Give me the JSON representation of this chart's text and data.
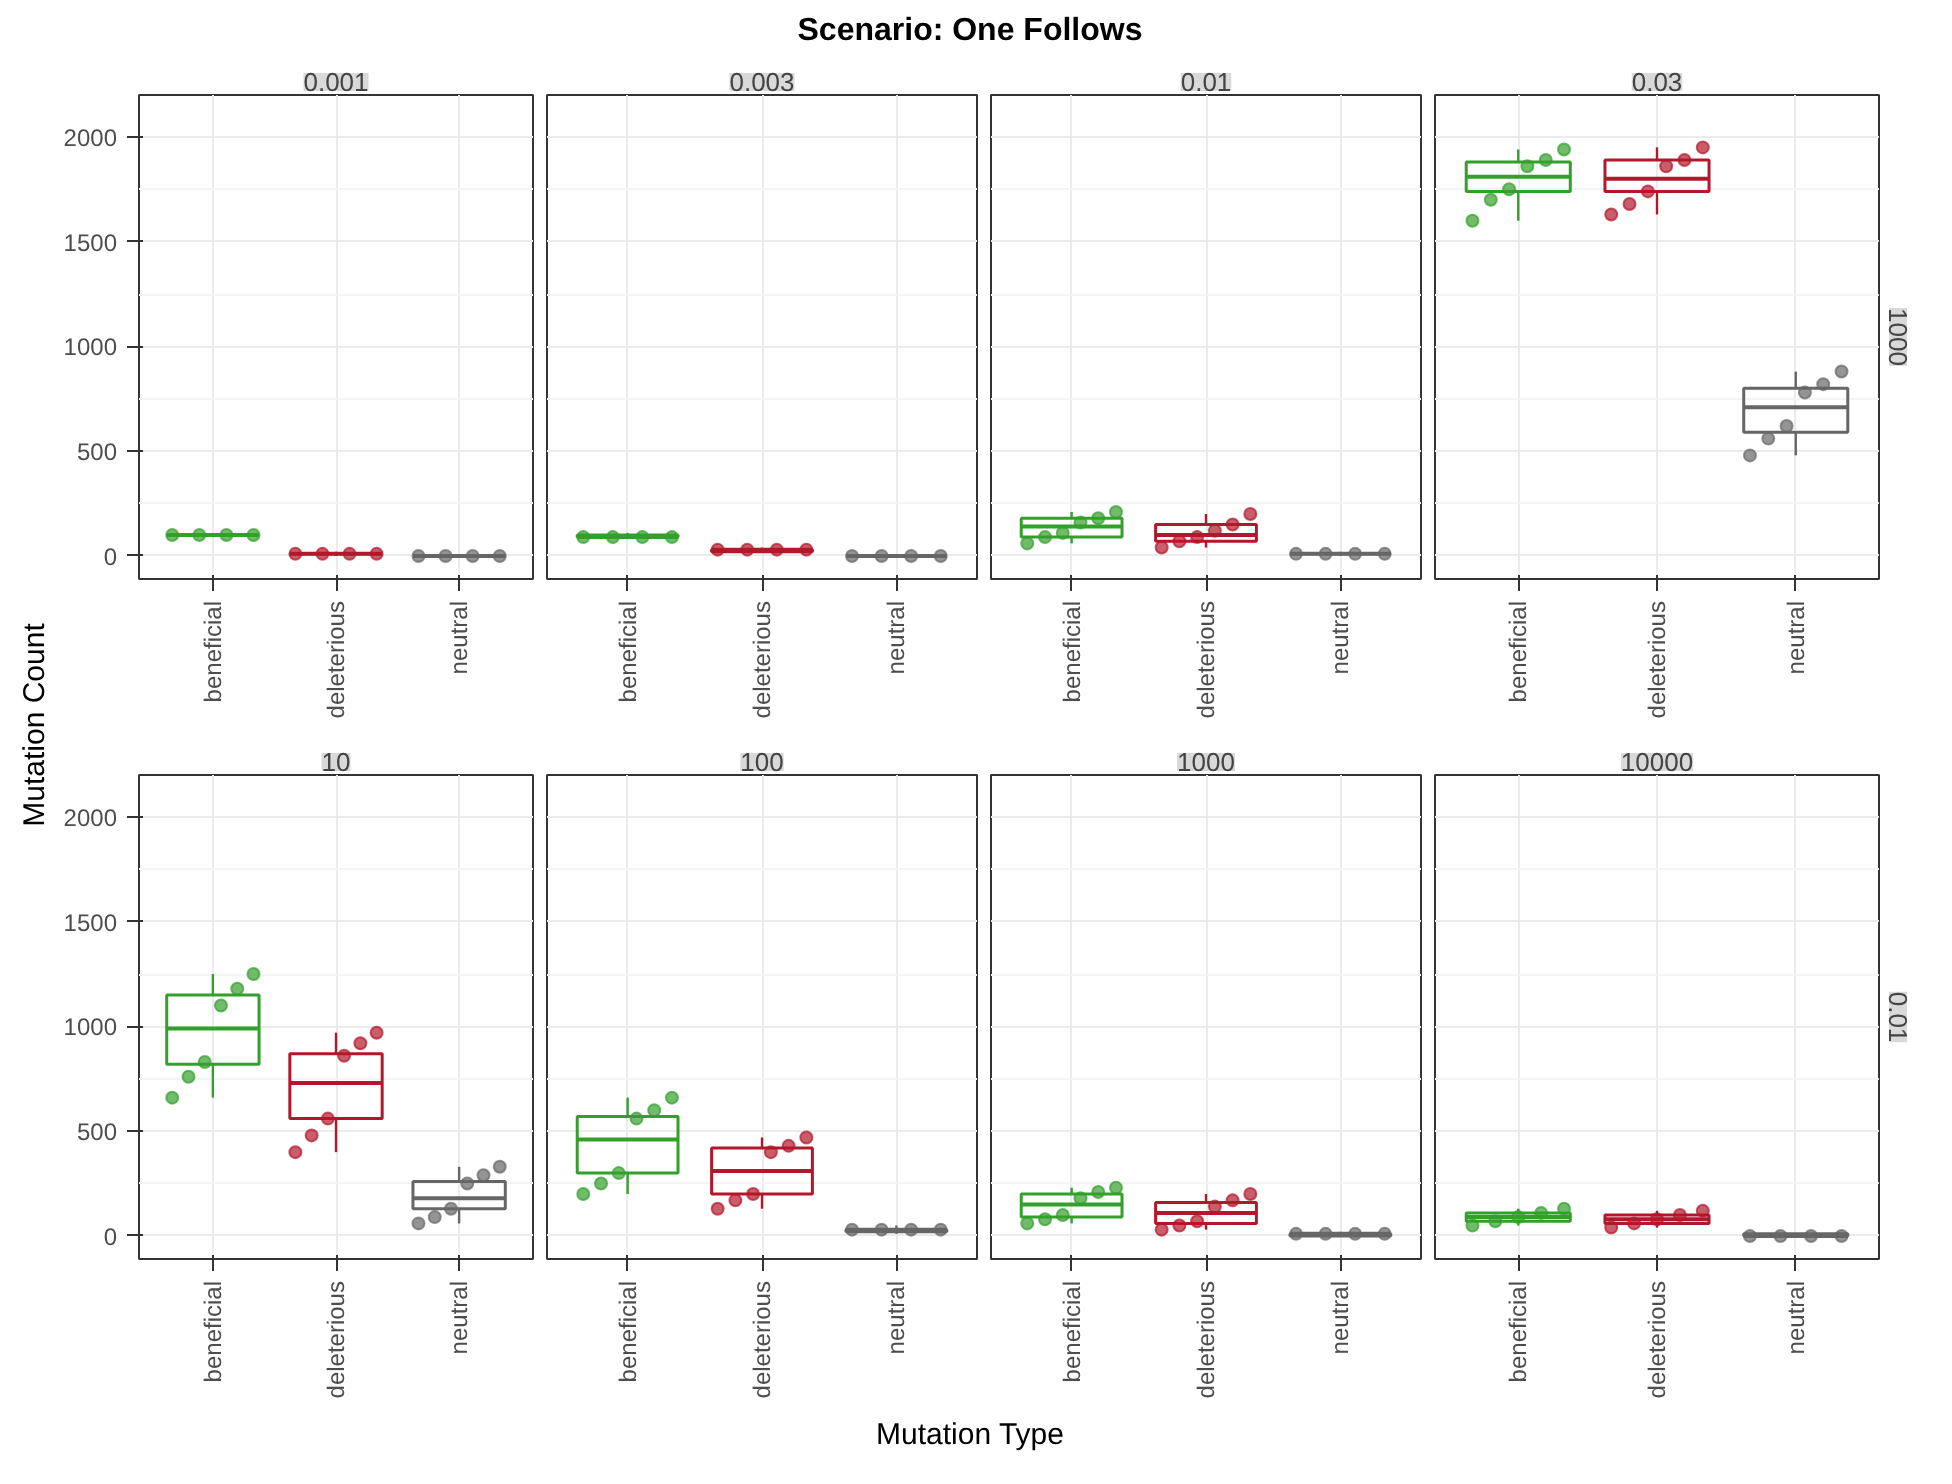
{
  "chart_data": [
    {
      "type": "box",
      "title": "0.001",
      "annotations": [
        "Scenario: One Follows",
        "Mutation Type",
        "Mutation Count"
      ],
      "categories": [
        "beneficial",
        "deleterious",
        "neutral"
      ],
      "ylim": [
        -110,
        2200
      ],
      "yticks": [
        0,
        500,
        1000,
        1500,
        2000
      ],
      "grid": true,
      "marker": "circle",
      "series": [
        {
          "colors": [
            "#33a02c",
            "#b2182b",
            "#666666"
          ],
          "boxes": [
            {
              "low": 90,
              "q1": 100,
              "median": 100,
              "q3": 100,
              "high": 110
            },
            {
              "low": 0,
              "q1": 10,
              "median": 10,
              "q3": 10,
              "high": 20
            },
            {
              "low": 0,
              "q1": 0,
              "median": 0,
              "q3": 0,
              "high": 0
            }
          ]
        },
        {
          "type": "scatter",
          "color": "#33a02c",
          "x": [
            "beneficial",
            "beneficial",
            "beneficial",
            "beneficial"
          ],
          "values": [
            100,
            100,
            100,
            100
          ]
        },
        {
          "type": "scatter",
          "color": "#b2182b",
          "x": [
            "deleterious",
            "deleterious",
            "deleterious",
            "deleterious"
          ],
          "values": [
            10,
            10,
            10,
            10
          ]
        },
        {
          "type": "scatter",
          "color": "#666666",
          "x": [
            "neutral",
            "neutral",
            "neutral",
            "neutral"
          ],
          "values": [
            0,
            0,
            0,
            0
          ]
        }
      ]
    },
    {
      "type": "box",
      "title": "0.003",
      "categories": [
        "beneficial",
        "deleterious",
        "neutral"
      ],
      "ylim": [
        -110,
        2200
      ],
      "yticks": [
        0,
        500,
        1000,
        1500,
        2000
      ],
      "grid": true,
      "marker": "circle",
      "tick_labels": "x",
      "series": [
        {
          "colors": [
            "#33a02c",
            "#b2182b",
            "#666666"
          ],
          "boxes": [
            {
              "low": 80,
              "q1": 90,
              "median": 90,
              "q3": 100,
              "high": 110
            },
            {
              "low": 20,
              "q1": 20,
              "median": 30,
              "q3": 30,
              "high": 40
            },
            {
              "low": 0,
              "q1": 0,
              "median": 0,
              "q3": 0,
              "high": 0
            }
          ]
        },
        {
          "type": "scatter",
          "color": "#33a02c",
          "x": [
            "beneficial",
            "beneficial",
            "beneficial",
            "beneficial"
          ],
          "values": [
            90,
            90,
            90,
            90
          ]
        },
        {
          "type": "scatter",
          "color": "#b2182b",
          "x": [
            "deleterious",
            "deleterious",
            "deleterious",
            "deleterious"
          ],
          "values": [
            30,
            30,
            30,
            30
          ]
        },
        {
          "type": "scatter",
          "color": "#666666",
          "x": [
            "neutral",
            "neutral",
            "neutral",
            "neutral"
          ],
          "values": [
            0,
            0,
            0,
            0
          ]
        }
      ]
    },
    {
      "type": "box",
      "title": "0.01",
      "categories": [
        "beneficial",
        "deleterious",
        "neutral"
      ],
      "ylim": [
        -110,
        2200
      ],
      "yticks": [
        0,
        500,
        1000,
        1500,
        2000
      ],
      "grid": true,
      "marker": "circle",
      "tick_labels": "x",
      "series": [
        {
          "colors": [
            "#33a02c",
            "#b2182b",
            "#666666"
          ],
          "boxes": [
            {
              "low": 60,
              "q1": 90,
              "median": 140,
              "q3": 180,
              "high": 210
            },
            {
              "low": 40,
              "q1": 70,
              "median": 100,
              "q3": 150,
              "high": 200
            },
            {
              "low": 0,
              "q1": 10,
              "median": 10,
              "q3": 10,
              "high": 20
            }
          ]
        },
        {
          "type": "scatter",
          "color": "#33a02c",
          "x": [
            "beneficial",
            "beneficial",
            "beneficial",
            "beneficial",
            "beneficial",
            "beneficial"
          ],
          "values": [
            60,
            90,
            110,
            160,
            180,
            210
          ]
        },
        {
          "type": "scatter",
          "color": "#b2182b",
          "x": [
            "deleterious",
            "deleterious",
            "deleterious",
            "deleterious",
            "deleterious",
            "deleterious"
          ],
          "values": [
            40,
            70,
            90,
            120,
            150,
            200
          ]
        },
        {
          "type": "scatter",
          "color": "#666666",
          "x": [
            "neutral",
            "neutral",
            "neutral",
            "neutral"
          ],
          "values": [
            10,
            10,
            10,
            10
          ]
        }
      ]
    },
    {
      "type": "box",
      "title": "0.03",
      "annotations": [
        "1000"
      ],
      "categories": [
        "beneficial",
        "deleterious",
        "neutral"
      ],
      "ylim": [
        -110,
        2200
      ],
      "yticks": [
        0,
        500,
        1000,
        1500,
        2000
      ],
      "grid": true,
      "marker": "circle",
      "tick_labels": "x",
      "series": [
        {
          "colors": [
            "#33a02c",
            "#b2182b",
            "#666666"
          ],
          "boxes": [
            {
              "low": 1600,
              "q1": 1740,
              "median": 1810,
              "q3": 1880,
              "high": 1940
            },
            {
              "low": 1630,
              "q1": 1740,
              "median": 1800,
              "q3": 1890,
              "high": 1950
            },
            {
              "low": 480,
              "q1": 590,
              "median": 710,
              "q3": 800,
              "high": 880
            }
          ]
        },
        {
          "type": "scatter",
          "color": "#33a02c",
          "x": [
            "beneficial",
            "beneficial",
            "beneficial",
            "beneficial",
            "beneficial",
            "beneficial"
          ],
          "values": [
            1600,
            1700,
            1750,
            1860,
            1890,
            1940
          ]
        },
        {
          "type": "scatter",
          "color": "#b2182b",
          "x": [
            "deleterious",
            "deleterious",
            "deleterious",
            "deleterious",
            "deleterious",
            "deleterious"
          ],
          "values": [
            1630,
            1680,
            1740,
            1860,
            1890,
            1950
          ]
        },
        {
          "type": "scatter",
          "color": "#666666",
          "x": [
            "neutral",
            "neutral",
            "neutral",
            "neutral",
            "neutral",
            "neutral"
          ],
          "values": [
            480,
            560,
            620,
            780,
            820,
            880
          ]
        }
      ]
    },
    {
      "type": "box",
      "title": "10",
      "categories": [
        "beneficial",
        "deleterious",
        "neutral"
      ],
      "ylim": [
        -110,
        2200
      ],
      "yticks": [
        0,
        500,
        1000,
        1500,
        2000
      ],
      "grid": true,
      "marker": "circle",
      "series": [
        {
          "colors": [
            "#33a02c",
            "#b2182b",
            "#666666"
          ],
          "boxes": [
            {
              "low": 660,
              "q1": 820,
              "median": 990,
              "q3": 1150,
              "high": 1250
            },
            {
              "low": 400,
              "q1": 560,
              "median": 730,
              "q3": 870,
              "high": 970
            },
            {
              "low": 60,
              "q1": 130,
              "median": 180,
              "q3": 260,
              "high": 330
            }
          ]
        },
        {
          "type": "scatter",
          "color": "#33a02c",
          "x": [
            "beneficial",
            "beneficial",
            "beneficial",
            "beneficial",
            "beneficial",
            "beneficial"
          ],
          "values": [
            660,
            760,
            830,
            1100,
            1180,
            1250
          ]
        },
        {
          "type": "scatter",
          "color": "#b2182b",
          "x": [
            "deleterious",
            "deleterious",
            "deleterious",
            "deleterious",
            "deleterious",
            "deleterious"
          ],
          "values": [
            400,
            480,
            560,
            860,
            920,
            970
          ]
        },
        {
          "type": "scatter",
          "color": "#666666",
          "x": [
            "neutral",
            "neutral",
            "neutral",
            "neutral",
            "neutral",
            "neutral"
          ],
          "values": [
            60,
            90,
            130,
            250,
            290,
            330
          ]
        }
      ]
    },
    {
      "type": "box",
      "title": "100",
      "categories": [
        "beneficial",
        "deleterious",
        "neutral"
      ],
      "ylim": [
        -110,
        2200
      ],
      "yticks": [
        0,
        500,
        1000,
        1500,
        2000
      ],
      "grid": true,
      "marker": "circle",
      "tick_labels": "x",
      "series": [
        {
          "colors": [
            "#33a02c",
            "#b2182b",
            "#666666"
          ],
          "boxes": [
            {
              "low": 200,
              "q1": 300,
              "median": 460,
              "q3": 570,
              "high": 660
            },
            {
              "low": 130,
              "q1": 200,
              "median": 310,
              "q3": 420,
              "high": 470
            },
            {
              "low": 10,
              "q1": 20,
              "median": 30,
              "q3": 30,
              "high": 50
            }
          ]
        },
        {
          "type": "scatter",
          "color": "#33a02c",
          "x": [
            "beneficial",
            "beneficial",
            "beneficial",
            "beneficial",
            "beneficial",
            "beneficial"
          ],
          "values": [
            200,
            250,
            300,
            560,
            600,
            660
          ]
        },
        {
          "type": "scatter",
          "color": "#b2182b",
          "x": [
            "deleterious",
            "deleterious",
            "deleterious",
            "deleterious",
            "deleterious",
            "deleterious"
          ],
          "values": [
            130,
            170,
            200,
            400,
            430,
            470
          ]
        },
        {
          "type": "scatter",
          "color": "#666666",
          "x": [
            "neutral",
            "neutral",
            "neutral",
            "neutral"
          ],
          "values": [
            30,
            30,
            30,
            30
          ]
        }
      ]
    },
    {
      "type": "box",
      "title": "1000",
      "categories": [
        "beneficial",
        "deleterious",
        "neutral"
      ],
      "ylim": [
        -110,
        2200
      ],
      "yticks": [
        0,
        500,
        1000,
        1500,
        2000
      ],
      "grid": true,
      "marker": "circle",
      "tick_labels": "x",
      "series": [
        {
          "colors": [
            "#33a02c",
            "#b2182b",
            "#666666"
          ],
          "boxes": [
            {
              "low": 60,
              "q1": 90,
              "median": 150,
              "q3": 200,
              "high": 230
            },
            {
              "low": 30,
              "q1": 60,
              "median": 110,
              "q3": 160,
              "high": 200
            },
            {
              "low": 0,
              "q1": 0,
              "median": 10,
              "q3": 10,
              "high": 20
            }
          ]
        },
        {
          "type": "scatter",
          "color": "#33a02c",
          "x": [
            "beneficial",
            "beneficial",
            "beneficial",
            "beneficial",
            "beneficial",
            "beneficial"
          ],
          "values": [
            60,
            80,
            100,
            180,
            210,
            230
          ]
        },
        {
          "type": "scatter",
          "color": "#b2182b",
          "x": [
            "deleterious",
            "deleterious",
            "deleterious",
            "deleterious",
            "deleterious",
            "deleterious"
          ],
          "values": [
            30,
            50,
            70,
            140,
            170,
            200
          ]
        },
        {
          "type": "scatter",
          "color": "#666666",
          "x": [
            "neutral",
            "neutral",
            "neutral",
            "neutral"
          ],
          "values": [
            10,
            10,
            10,
            10
          ]
        }
      ]
    },
    {
      "type": "box",
      "title": "10000",
      "annotations": [
        "0.01"
      ],
      "categories": [
        "beneficial",
        "deleterious",
        "neutral"
      ],
      "ylim": [
        -110,
        2200
      ],
      "yticks": [
        0,
        500,
        1000,
        1500,
        2000
      ],
      "grid": true,
      "marker": "circle",
      "tick_labels": "x",
      "series": [
        {
          "colors": [
            "#33a02c",
            "#b2182b",
            "#666666"
          ],
          "boxes": [
            {
              "low": 50,
              "q1": 70,
              "median": 90,
              "q3": 110,
              "high": 130
            },
            {
              "low": 40,
              "q1": 60,
              "median": 80,
              "q3": 100,
              "high": 120
            },
            {
              "low": 0,
              "q1": 0,
              "median": 0,
              "q3": 10,
              "high": 10
            }
          ]
        },
        {
          "type": "scatter",
          "color": "#33a02c",
          "x": [
            "beneficial",
            "beneficial",
            "beneficial",
            "beneficial",
            "beneficial"
          ],
          "values": [
            50,
            70,
            90,
            110,
            130
          ]
        },
        {
          "type": "scatter",
          "color": "#b2182b",
          "x": [
            "deleterious",
            "deleterious",
            "deleterious",
            "deleterious",
            "deleterious"
          ],
          "values": [
            40,
            60,
            80,
            100,
            120
          ]
        },
        {
          "type": "scatter",
          "color": "#666666",
          "x": [
            "neutral",
            "neutral",
            "neutral",
            "neutral"
          ],
          "values": [
            0,
            0,
            0,
            0
          ]
        }
      ]
    }
  ]
}
